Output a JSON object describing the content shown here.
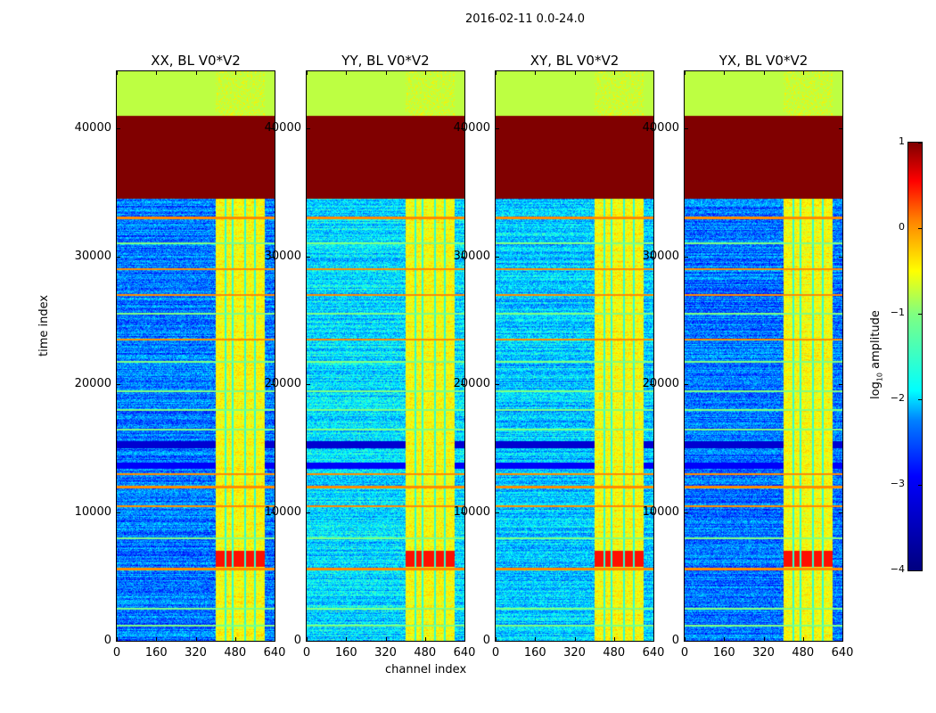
{
  "figure": {
    "suptitle": "2016-02-11 0.0-24.0"
  },
  "chart_data": {
    "type": "heatmap",
    "panels": [
      {
        "title": "XX, BL V0*V2",
        "base_level": -2.8
      },
      {
        "title": "YY, BL V0*V2",
        "base_level": -2.3
      },
      {
        "title": "XY, BL V0*V2",
        "base_level": -2.4
      },
      {
        "title": "YX, BL V0*V2",
        "base_level": -2.8
      }
    ],
    "xlabel": "channel index",
    "ylabel": "time index",
    "xlim": [
      0,
      640
    ],
    "ylim": [
      0,
      44450
    ],
    "xticks": [
      0,
      160,
      320,
      480,
      640
    ],
    "xtick_labels": [
      "0",
      "160",
      "320",
      "480",
      "640"
    ],
    "yticks": [
      0,
      10000,
      20000,
      30000,
      40000
    ],
    "ytick_labels": [
      "0",
      "10000",
      "20000",
      "30000",
      "40000"
    ],
    "colorbar": {
      "label_main": "log",
      "label_sub": "10",
      "label_rest": " amplitude",
      "range": [
        -4,
        1
      ],
      "ticks": [
        1,
        0,
        -1,
        -2,
        -3,
        -4
      ],
      "tick_labels": [
        "1",
        "0",
        "−1",
        "−2",
        "−3",
        "−4"
      ],
      "colormap": "jet"
    },
    "row_bands": [
      {
        "from": 34500,
        "to": 41000,
        "value": 1.0
      },
      {
        "from": 41000,
        "to": 44450,
        "value": -1.2
      },
      {
        "from": 15000,
        "to": 15600,
        "value": -3.6
      },
      {
        "from": 13400,
        "to": 13900,
        "value": -3.4
      }
    ],
    "channel_bands": {
      "from": 400,
      "to": 600,
      "rows_to": 34500,
      "value": -0.9,
      "gaps": [
        440,
        470,
        520,
        560
      ]
    },
    "hot_spots": [
      {
        "channels": [
          400,
          600
        ],
        "rows": [
          5800,
          7000
        ],
        "value": 0.3
      }
    ],
    "orange_lines": [
      5600,
      10500,
      12000,
      13000,
      23500,
      27000,
      29000,
      33000
    ],
    "green_lines": [
      1200,
      2500,
      8000,
      16500,
      18000,
      19500,
      21800,
      25500,
      31000,
      36000,
      37500,
      39200,
      40500
    ]
  }
}
